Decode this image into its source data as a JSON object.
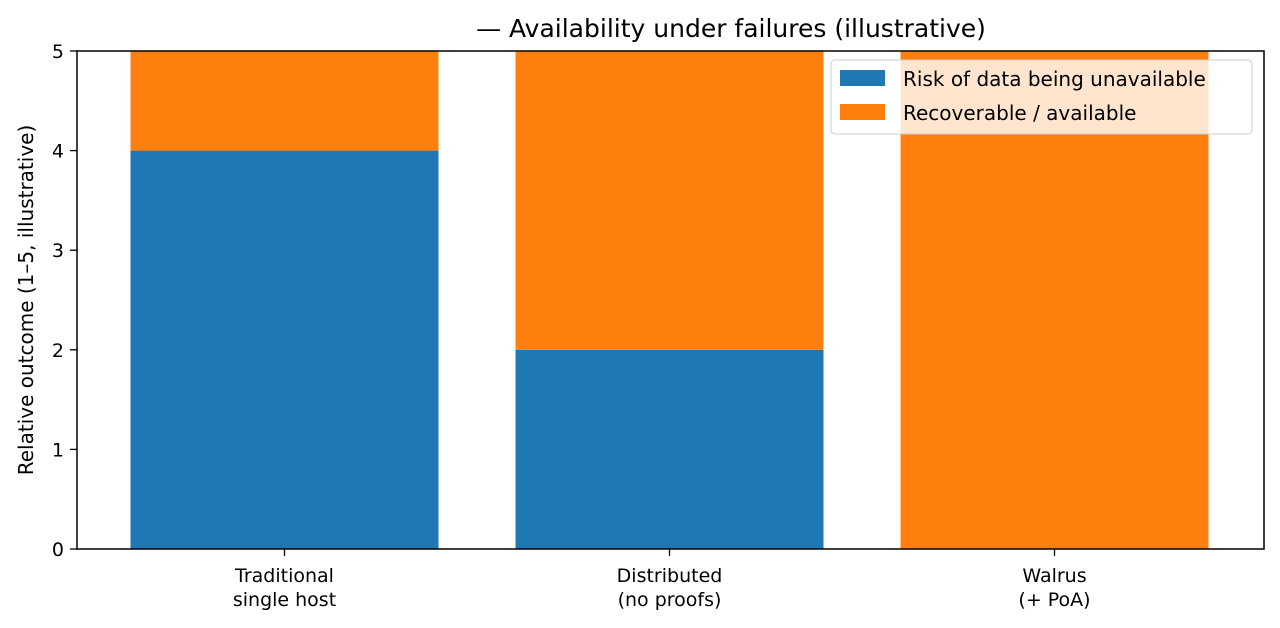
{
  "chart_data": {
    "type": "bar",
    "stacked": true,
    "title": "— Availability under failures (illustrative)",
    "xlabel": "",
    "ylabel": "Relative outcome (1–5, illustrative)",
    "categories": [
      [
        "Traditional",
        "single host"
      ],
      [
        "Distributed",
        "(no proofs)"
      ],
      [
        "Walrus",
        "(+ PoA)"
      ]
    ],
    "series": [
      {
        "name": "Risk of data being unavailable",
        "values": [
          4,
          2,
          0
        ],
        "color": "#1f77b4"
      },
      {
        "name": "Recoverable / available",
        "values": [
          1,
          3,
          5
        ],
        "color": "#ff7f0e"
      }
    ],
    "ylim": [
      0,
      5
    ],
    "yticks": [
      0,
      1,
      2,
      3,
      4,
      5
    ],
    "grid": false,
    "legend_position": "top-right"
  }
}
